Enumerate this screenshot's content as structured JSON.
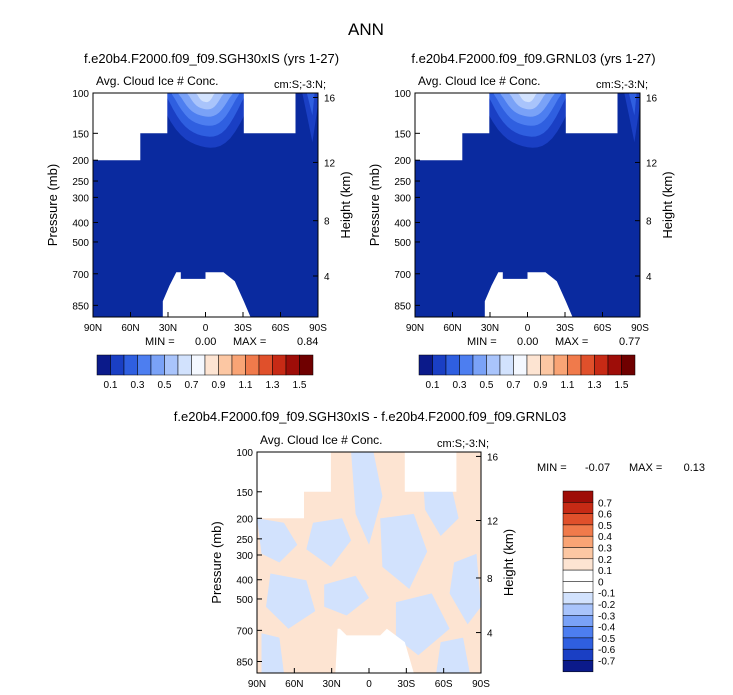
{
  "figure": {
    "title": "ANN",
    "colors": {
      "ocean_fill": "#0a2a9f",
      "background": "#ffffff"
    }
  },
  "colorbars": {
    "top": {
      "labels": [
        "0.1",
        "0.3",
        "0.5",
        "0.7",
        "0.9",
        "1.1",
        "1.3",
        "1.5"
      ],
      "colors": [
        "#0b1a8a",
        "#1a3fc4",
        "#2f5fe0",
        "#4d7ef0",
        "#7aa2f7",
        "#a9c4fb",
        "#d2e2fd",
        "#f4f8ff",
        "#fde4d2",
        "#fcc7a3",
        "#f9a475",
        "#f07a4b",
        "#e0502b",
        "#c72a15",
        "#9e0d08",
        "#6f0000"
      ]
    },
    "diff": {
      "labels": [
        "0.7",
        "0.6",
        "0.5",
        "0.4",
        "0.3",
        "0.2",
        "0.1",
        "0",
        "-0.1",
        "-0.2",
        "-0.3",
        "-0.4",
        "-0.5",
        "-0.6",
        "-0.7"
      ],
      "colors": [
        "#9e0d08",
        "#c72a15",
        "#e0502b",
        "#f07a4b",
        "#f9a475",
        "#fcc7a3",
        "#fde4d2",
        "#ffffff",
        "#ffffff",
        "#d2e2fd",
        "#a9c4fb",
        "#7aa2f7",
        "#4d7ef0",
        "#2f5fe0",
        "#1a3fc4",
        "#0b1a8a"
      ]
    }
  },
  "chart_data": [
    {
      "type": "heatmap",
      "title": "f.e20b4.F2000.f09_f09.SGH30xIS (yrs 1-27)",
      "subtitle_left": "Avg. Cloud Ice # Conc.",
      "subtitle_right": "cm:S;-3:N;",
      "ylabel": "Pressure (mb)",
      "ylabel_right": "Height (km)",
      "x_ticks": [
        "90N",
        "60N",
        "30N",
        "0",
        "30S",
        "60S",
        "90S"
      ],
      "y_ticks": [
        "100",
        "150",
        "200",
        "250",
        "300",
        "400",
        "500",
        "700",
        "850"
      ],
      "y_ticks_right": [
        "16",
        "12",
        "8",
        "4"
      ],
      "min_label": "MIN =",
      "min_value": "0.00",
      "max_label": "MAX =",
      "max_value": "0.84",
      "ylim": [
        100,
        1000
      ]
    },
    {
      "type": "heatmap",
      "title": "f.e20b4.F2000.f09_f09.GRNL03 (yrs 1-27)",
      "subtitle_left": "Avg. Cloud Ice # Conc.",
      "subtitle_right": "cm:S;-3:N;",
      "ylabel": "Pressure (mb)",
      "ylabel_right": "Height (km)",
      "x_ticks": [
        "90N",
        "60N",
        "30N",
        "0",
        "30S",
        "60S",
        "90S"
      ],
      "y_ticks": [
        "100",
        "150",
        "200",
        "250",
        "300",
        "400",
        "500",
        "700",
        "850"
      ],
      "y_ticks_right": [
        "16",
        "12",
        "8",
        "4"
      ],
      "min_label": "MIN =",
      "min_value": "0.00",
      "max_label": "MAX =",
      "max_value": "0.77",
      "ylim": [
        100,
        1000
      ]
    },
    {
      "type": "heatmap",
      "title": "f.e20b4.F2000.f09_f09.SGH30xIS - f.e20b4.F2000.f09_f09.GRNL03",
      "subtitle_left": "Avg. Cloud Ice # Conc.",
      "subtitle_right": "cm:S;-3:N;",
      "ylabel": "Pressure (mb)",
      "ylabel_right": "Height (km)",
      "x_ticks": [
        "90N",
        "60N",
        "30N",
        "0",
        "30S",
        "60S",
        "90S"
      ],
      "y_ticks": [
        "100",
        "150",
        "200",
        "250",
        "300",
        "400",
        "500",
        "700",
        "850"
      ],
      "y_ticks_right": [
        "16",
        "12",
        "8",
        "4"
      ],
      "min_label": "MIN =",
      "min_value": "-0.07",
      "max_label": "MAX =",
      "max_value": "0.13",
      "ylim": [
        100,
        1000
      ]
    }
  ]
}
